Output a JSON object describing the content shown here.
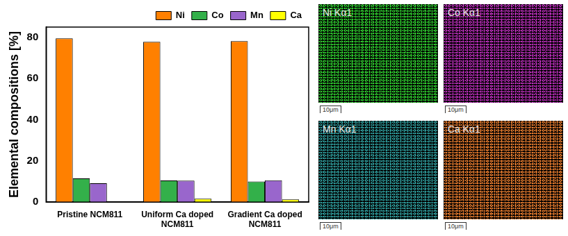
{
  "chart_data": {
    "type": "bar",
    "y_label": "Elemental compositions [%]",
    "categories": [
      "Pristine NCM811",
      "Uniform Ca doped NCM811",
      "Gradient Ca doped NCM811"
    ],
    "series": [
      {
        "name": "Ni",
        "color": "#ff8000",
        "values": [
          79.5,
          77.8,
          78.2
        ]
      },
      {
        "name": "Co",
        "color": "#33b04a",
        "values": [
          11.5,
          10.5,
          10.0
        ]
      },
      {
        "name": "Mn",
        "color": "#9966cc",
        "values": [
          9.2,
          10.4,
          10.6
        ]
      },
      {
        "name": "Ca",
        "color": "#ffff00",
        "values": [
          0,
          1.7,
          1.3
        ]
      }
    ],
    "ylim": [
      0,
      85
    ],
    "yticks": [
      0,
      20,
      40,
      60,
      80
    ],
    "grid": false,
    "legend": "top-right"
  },
  "maps": [
    {
      "label": "Ni Kα1",
      "color": "#33dd33",
      "scale_bar": "10μm"
    },
    {
      "label": "Co Kα1",
      "color": "#cc33cc",
      "scale_bar": "10μm"
    },
    {
      "label": "Mn Kα1",
      "color": "#33aaaa",
      "scale_bar": "10μm"
    },
    {
      "label": "Ca Kα1",
      "color": "#ff8833",
      "scale_bar": "10μm"
    }
  ]
}
